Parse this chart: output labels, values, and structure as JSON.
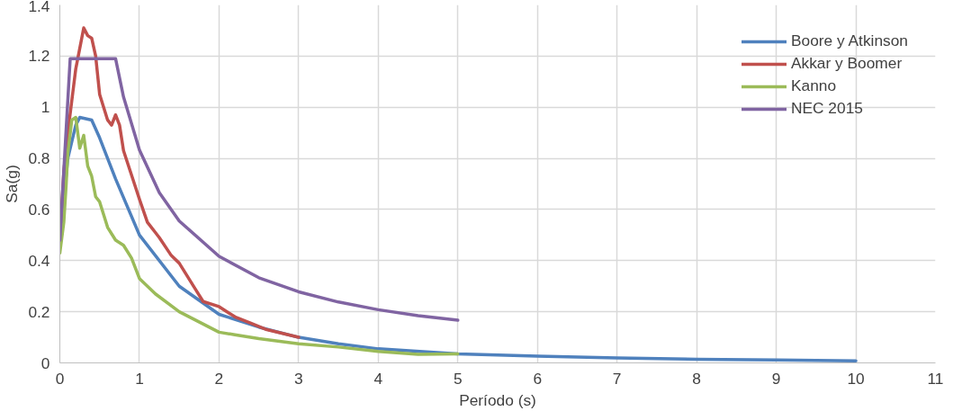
{
  "chart_data": {
    "type": "line",
    "xlabel": "Período (s)",
    "ylabel": "Sa(g)",
    "xlim": [
      0,
      11
    ],
    "xticks": [
      0,
      1,
      2,
      3,
      4,
      5,
      6,
      7,
      8,
      9,
      10,
      11
    ],
    "ylim": [
      0,
      1.4
    ],
    "yticks": [
      0,
      0.2,
      0.4,
      0.6,
      0.8,
      1,
      1.2,
      1.4
    ],
    "grid": true,
    "legend": "top right",
    "marker": "none",
    "line_style": "solid",
    "series": [
      {
        "name": "Boore y Atkinson",
        "color": "#4f81bd",
        "x": [
          0,
          0.1,
          0.2,
          0.25,
          0.4,
          0.5,
          0.7,
          1,
          1.5,
          2,
          2.5,
          3,
          3.5,
          4,
          5,
          6,
          7,
          8,
          9,
          10
        ],
        "values": [
          0.48,
          0.8,
          0.93,
          0.96,
          0.95,
          0.88,
          0.72,
          0.5,
          0.3,
          0.19,
          0.14,
          0.1,
          0.075,
          0.055,
          0.035,
          0.026,
          0.019,
          0.014,
          0.011,
          0.008
        ]
      },
      {
        "name": "Akkar y Boomer",
        "color": "#c0504d",
        "x": [
          0,
          0.05,
          0.1,
          0.2,
          0.3,
          0.35,
          0.4,
          0.45,
          0.5,
          0.6,
          0.65,
          0.7,
          0.75,
          0.8,
          1,
          1.1,
          1.2,
          1.25,
          1.4,
          1.5,
          1.7,
          1.8,
          2,
          2.2,
          2.4,
          2.6,
          3
        ],
        "values": [
          0.48,
          0.75,
          0.9,
          1.15,
          1.31,
          1.28,
          1.27,
          1.2,
          1.05,
          0.95,
          0.93,
          0.97,
          0.93,
          0.83,
          0.64,
          0.55,
          0.51,
          0.49,
          0.42,
          0.39,
          0.29,
          0.24,
          0.22,
          0.18,
          0.155,
          0.13,
          0.1
        ]
      },
      {
        "name": "Kanno",
        "color": "#9bbb59",
        "x": [
          0,
          0.05,
          0.08,
          0.1,
          0.15,
          0.2,
          0.25,
          0.3,
          0.35,
          0.4,
          0.45,
          0.5,
          0.6,
          0.7,
          0.8,
          0.9,
          1,
          1.2,
          1.5,
          2,
          2.2,
          2.5,
          3,
          3.5,
          4,
          4.5,
          5
        ],
        "values": [
          0.43,
          0.55,
          0.7,
          0.82,
          0.95,
          0.96,
          0.84,
          0.89,
          0.77,
          0.73,
          0.65,
          0.63,
          0.53,
          0.48,
          0.46,
          0.41,
          0.33,
          0.27,
          0.2,
          0.12,
          0.11,
          0.095,
          0.075,
          0.062,
          0.045,
          0.033,
          0.035
        ]
      },
      {
        "name": "NEC 2015",
        "color": "#8064a2",
        "x": [
          0,
          0.13,
          0.7,
          0.8,
          1,
          1.25,
          1.5,
          2,
          2.5,
          3,
          3.5,
          4,
          4.5,
          5
        ],
        "values": [
          0.48,
          1.19,
          1.19,
          1.04,
          0.833,
          0.666,
          0.555,
          0.417,
          0.333,
          0.278,
          0.238,
          0.208,
          0.185,
          0.167
        ]
      }
    ]
  }
}
